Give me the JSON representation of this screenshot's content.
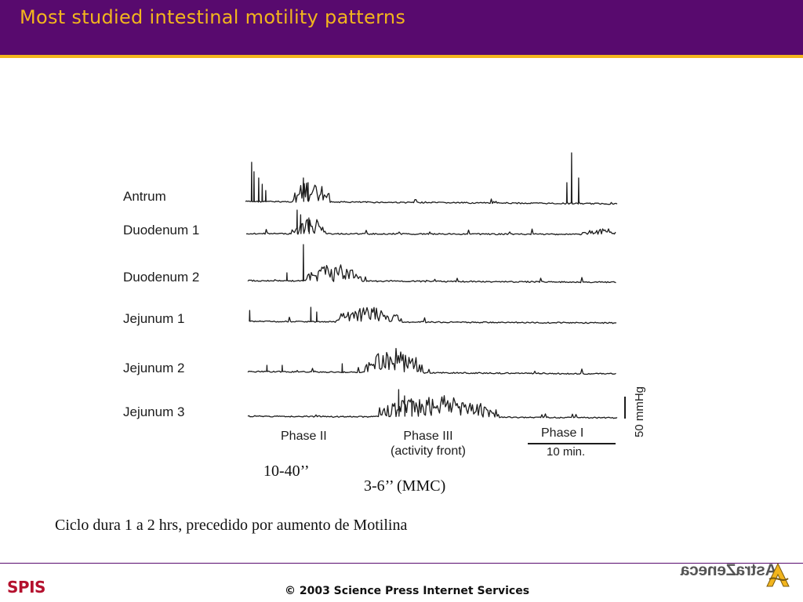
{
  "slide": {
    "title": "Most studied intestinal motility patterns"
  },
  "figure": {
    "traces": [
      {
        "label": "Antrum"
      },
      {
        "label": "Duodenum 1"
      },
      {
        "label": "Duodenum 2"
      },
      {
        "label": "Jejunum 1"
      },
      {
        "label": "Jejunum 2"
      },
      {
        "label": "Jejunum 3"
      }
    ],
    "phases": {
      "phase2": "Phase II",
      "phase3_line1": "Phase III",
      "phase3_line2": "(activity front)",
      "phase1": "Phase I"
    },
    "time_scale": "10 min.",
    "pressure_scale": "50 mmHg"
  },
  "annotations": {
    "interval_1": "10-40’’",
    "interval_2": "3-6’’ (MMC)",
    "note": "Ciclo dura 1 a 2 hrs, precedido por aumento de Motilina"
  },
  "footer": {
    "left_logo": "SPIS",
    "copyright": "© 2003 Science Press Internet Services",
    "right_logo": "AstraZeneca"
  },
  "colors": {
    "header_bg": "#580a6e",
    "accent": "#f2b51d",
    "trace": "#1c1c1c"
  }
}
